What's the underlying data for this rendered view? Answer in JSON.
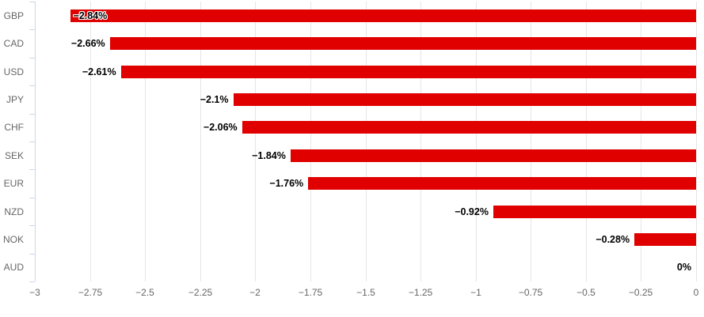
{
  "chart_data": {
    "type": "bar",
    "orientation": "horizontal",
    "title": "",
    "xlabel": "",
    "ylabel": "",
    "grid": true,
    "legend": "none",
    "xlim": [
      -3,
      0
    ],
    "categories": [
      "GBP",
      "CAD",
      "USD",
      "JPY",
      "CHF",
      "SEK",
      "EUR",
      "NZD",
      "NOK",
      "AUD"
    ],
    "values": [
      -2.84,
      -2.66,
      -2.61,
      -2.1,
      -2.06,
      -1.84,
      -1.76,
      -0.92,
      -0.28,
      0
    ],
    "points": [
      {
        "category": "GBP",
        "value": -2.84,
        "label": "−2.84%",
        "label_inside": true
      },
      {
        "category": "CAD",
        "value": -2.66,
        "label": "−2.66%",
        "label_inside": false
      },
      {
        "category": "USD",
        "value": -2.61,
        "label": "−2.61%",
        "label_inside": false
      },
      {
        "category": "JPY",
        "value": -2.1,
        "label": "−2.1%",
        "label_inside": false
      },
      {
        "category": "CHF",
        "value": -2.06,
        "label": "−2.06%",
        "label_inside": false
      },
      {
        "category": "SEK",
        "value": -1.84,
        "label": "−1.84%",
        "label_inside": false
      },
      {
        "category": "EUR",
        "value": -1.76,
        "label": "−1.76%",
        "label_inside": false
      },
      {
        "category": "NZD",
        "value": -0.92,
        "label": "−0.92%",
        "label_inside": false
      },
      {
        "category": "NOK",
        "value": -0.28,
        "label": "−0.28%",
        "label_inside": false
      },
      {
        "category": "AUD",
        "value": 0,
        "label": "0%",
        "label_inside": false
      }
    ],
    "x_ticks": [
      -3,
      -2.75,
      -2.5,
      -2.25,
      -2,
      -1.75,
      -1.5,
      -1.25,
      -1,
      -0.75,
      -0.5,
      -0.25,
      0
    ],
    "x_tick_labels": [
      "−3",
      "−2.75",
      "−2.5",
      "−2.25",
      "−2",
      "−1.75",
      "−1.5",
      "−1.25",
      "−1",
      "−0.75",
      "−0.5",
      "−0.25",
      "0"
    ],
    "colors": {
      "bar": "#e00000",
      "grid": "#e6e6e6",
      "axis_line": "#ccd6eb",
      "axis_label": "#666666",
      "data_label": "#000000"
    }
  }
}
